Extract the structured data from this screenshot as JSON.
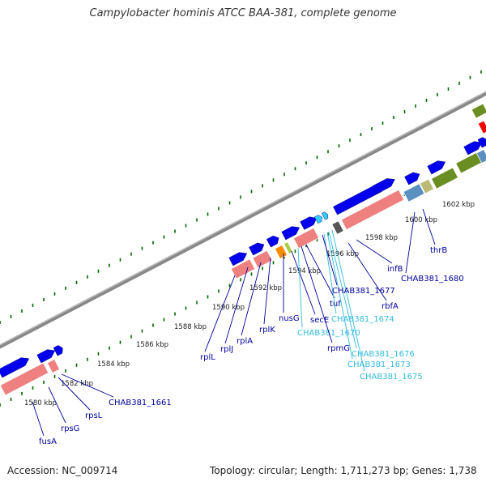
{
  "title": "Campylobacter hominis ATCC BAA-381, complete genome",
  "footer": {
    "accession": "Accession: NC_009714",
    "summary": "Topology: circular; Length: 1,711,273 bp; Genes: 1,738"
  },
  "colors": {
    "cds_forward": "#0000ee",
    "cds_light": "#33ccff",
    "gene_track": "#ee8080",
    "backbone": "#999999",
    "tick": "#006600",
    "label_dark": "#000099",
    "label_light": "#33bbdd",
    "olive": "#6b8e23",
    "steelblue": "#5b8fc0",
    "orange": "#ff8c00",
    "red": "#ee0000"
  },
  "scale_labels": [
    "1580 kbp",
    "1582 kbp",
    "1584 kbp",
    "1586 kbp",
    "1588 kbp",
    "1590 kbp",
    "1592 kbp",
    "1594 kbp",
    "1596 kbp",
    "1598 kbp",
    "1600 kbp",
    "1602 kbp"
  ],
  "genes": [
    {
      "name": "fusA",
      "style": "dark"
    },
    {
      "name": "rpsG",
      "style": "dark"
    },
    {
      "name": "rpsL",
      "style": "dark"
    },
    {
      "name": "CHAB381_1661",
      "style": "dark"
    },
    {
      "name": "rplL",
      "style": "dark"
    },
    {
      "name": "rplJ",
      "style": "dark"
    },
    {
      "name": "rplA",
      "style": "dark"
    },
    {
      "name": "rplK",
      "style": "dark"
    },
    {
      "name": "nusG",
      "style": "dark"
    },
    {
      "name": "secE",
      "style": "dark"
    },
    {
      "name": "CHAB381_1670",
      "style": "light"
    },
    {
      "name": "tuf",
      "style": "dark"
    },
    {
      "name": "rpmG",
      "style": "dark"
    },
    {
      "name": "CHAB381_1674",
      "style": "light"
    },
    {
      "name": "CHAB381_1676",
      "style": "light"
    },
    {
      "name": "CHAB381_1673",
      "style": "light"
    },
    {
      "name": "CHAB381_1675",
      "style": "light"
    },
    {
      "name": "CHAB381_1677",
      "style": "dark"
    },
    {
      "name": "rbfA",
      "style": "dark"
    },
    {
      "name": "infB",
      "style": "dark"
    },
    {
      "name": "CHAB381_1680",
      "style": "dark"
    },
    {
      "name": "thrB",
      "style": "dark"
    }
  ]
}
